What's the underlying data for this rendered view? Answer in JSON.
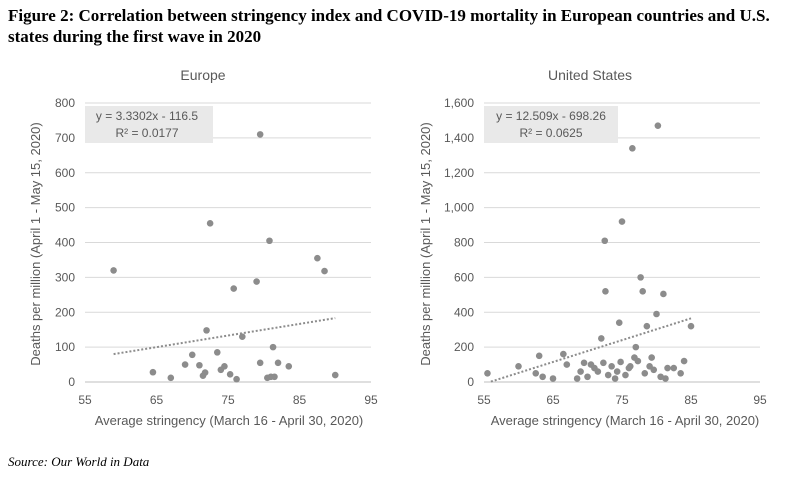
{
  "figure": {
    "title": "Figure 2: Correlation between stringency index and COVID-19 mortality in European countries and U.S. states during the first wave in 2020",
    "source": "Source: Our World in Data"
  },
  "chart_data": [
    {
      "type": "scatter",
      "title": "Europe",
      "xlabel": "Average stringency (March 16 - April 30, 2020)",
      "ylabel": "Deaths per million (April 1 - May 15, 2020)",
      "xlim": [
        55,
        95
      ],
      "ylim": [
        0,
        800
      ],
      "xticks": [
        55,
        65,
        75,
        85,
        95
      ],
      "yticks": [
        0,
        100,
        200,
        300,
        400,
        500,
        600,
        700,
        800
      ],
      "xtick_labels": [
        "55",
        "65",
        "75",
        "85",
        "95"
      ],
      "ytick_labels": [
        "0",
        "100",
        "200",
        "300",
        "400",
        "500",
        "600",
        "700",
        "800"
      ],
      "grid": "horizontal",
      "point_color": "#8c8c8c",
      "trend_color": "#8c8c8c",
      "annotation": {
        "equation": "y = 3.3302x - 116.5",
        "r2": "R² = 0.0177"
      },
      "trendline": {
        "slope": 3.3302,
        "intercept": -116.5,
        "x_range": [
          59,
          90
        ]
      },
      "points": [
        [
          59,
          320
        ],
        [
          64.5,
          28
        ],
        [
          67,
          12
        ],
        [
          69,
          50
        ],
        [
          70,
          78
        ],
        [
          71,
          48
        ],
        [
          71.5,
          18
        ],
        [
          71.8,
          27
        ],
        [
          72,
          148
        ],
        [
          72.5,
          455
        ],
        [
          73.5,
          85
        ],
        [
          74,
          35
        ],
        [
          74.5,
          45
        ],
        [
          75.3,
          22
        ],
        [
          75.8,
          268
        ],
        [
          76.2,
          8
        ],
        [
          77,
          130
        ],
        [
          79,
          288
        ],
        [
          79.5,
          710
        ],
        [
          79.5,
          55
        ],
        [
          80.5,
          12
        ],
        [
          80.8,
          405
        ],
        [
          81,
          15
        ],
        [
          81.3,
          100
        ],
        [
          81.5,
          15
        ],
        [
          82,
          55
        ],
        [
          83.5,
          45
        ],
        [
          87.5,
          355
        ],
        [
          88.5,
          318
        ],
        [
          90,
          20
        ]
      ]
    },
    {
      "type": "scatter",
      "title": "United States",
      "xlabel": "Average stringency (March 16 - April 30, 2020)",
      "ylabel": "Deaths per million (April 1 - May 15, 2020)",
      "xlim": [
        55,
        95
      ],
      "ylim": [
        0,
        1600
      ],
      "xticks": [
        55,
        65,
        75,
        85,
        95
      ],
      "yticks": [
        0,
        200,
        400,
        600,
        800,
        1000,
        1200,
        1400,
        1600
      ],
      "xtick_labels": [
        "55",
        "65",
        "75",
        "85",
        "95"
      ],
      "ytick_labels": [
        "0",
        "200",
        "400",
        "600",
        "800",
        "1,000",
        "1,200",
        "1,400",
        "1,600"
      ],
      "grid": "horizontal",
      "point_color": "#8c8c8c",
      "trend_color": "#8c8c8c",
      "annotation": {
        "equation": "y = 12.509x - 698.26",
        "r2": "R² = 0.0625"
      },
      "trendline": {
        "slope": 12.509,
        "intercept": -698.26,
        "x_range": [
          56,
          85
        ]
      },
      "points": [
        [
          55.5,
          50
        ],
        [
          60,
          90
        ],
        [
          62.5,
          50
        ],
        [
          63,
          150
        ],
        [
          63.5,
          30
        ],
        [
          65,
          20
        ],
        [
          66.5,
          160
        ],
        [
          67,
          100
        ],
        [
          68.5,
          20
        ],
        [
          69,
          60
        ],
        [
          69.5,
          110
        ],
        [
          70,
          30
        ],
        [
          70.5,
          100
        ],
        [
          71,
          80
        ],
        [
          71.5,
          60
        ],
        [
          72,
          250
        ],
        [
          72.3,
          110
        ],
        [
          72.5,
          810
        ],
        [
          72.6,
          520
        ],
        [
          73,
          40
        ],
        [
          73.5,
          90
        ],
        [
          74,
          20
        ],
        [
          74.3,
          60
        ],
        [
          74.6,
          340
        ],
        [
          74.8,
          115
        ],
        [
          75,
          920
        ],
        [
          75.5,
          40
        ],
        [
          76,
          80
        ],
        [
          76.2,
          90
        ],
        [
          76.5,
          1340
        ],
        [
          76.8,
          140
        ],
        [
          77,
          200
        ],
        [
          77.3,
          120
        ],
        [
          77.7,
          600
        ],
        [
          78,
          520
        ],
        [
          78.3,
          50
        ],
        [
          78.6,
          320
        ],
        [
          79,
          90
        ],
        [
          79.3,
          140
        ],
        [
          79.6,
          70
        ],
        [
          80,
          390
        ],
        [
          80.2,
          1470
        ],
        [
          80.6,
          30
        ],
        [
          81,
          505
        ],
        [
          81.3,
          20
        ],
        [
          81.6,
          80
        ],
        [
          82.5,
          80
        ],
        [
          83.5,
          50
        ],
        [
          84,
          120
        ],
        [
          85,
          320
        ]
      ]
    }
  ]
}
